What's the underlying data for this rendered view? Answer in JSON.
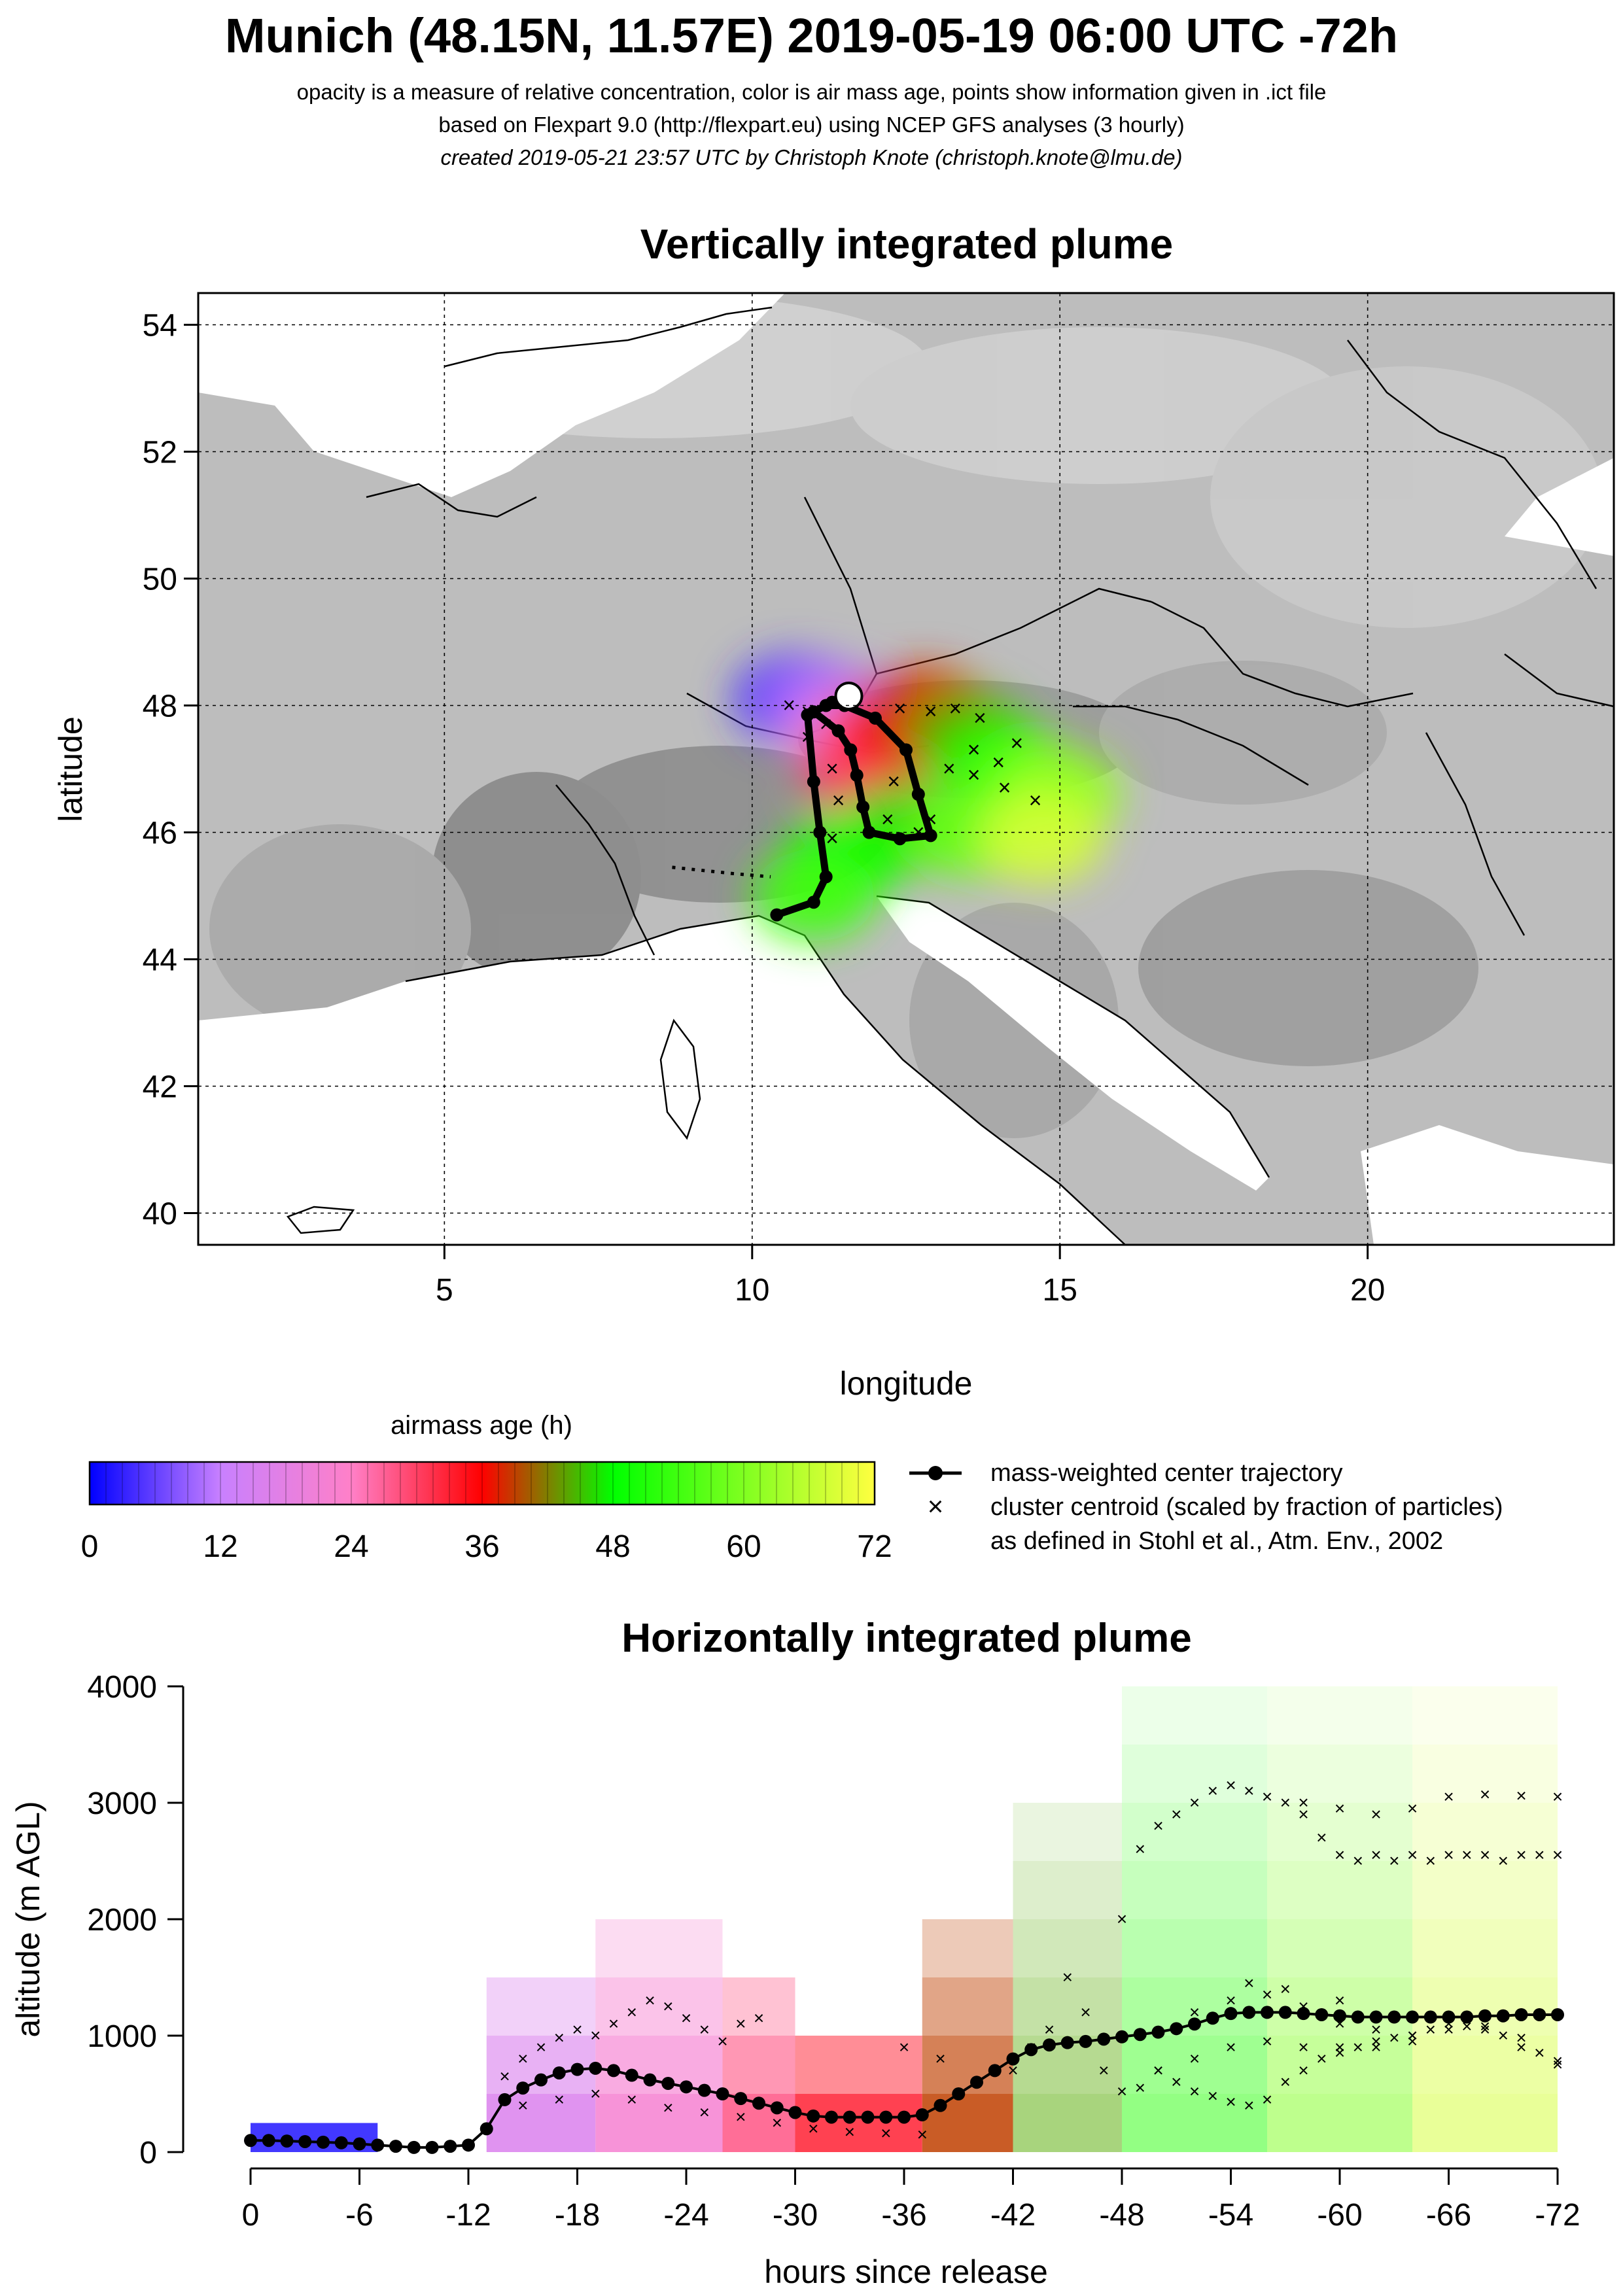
{
  "header": {
    "title": "Munich (48.15N, 11.57E) 2019-05-19 06:00 UTC -72h",
    "subtitle_1": "opacity is a measure of relative concentration, color is air mass age, points show information given in .ict file",
    "subtitle_2": "based on Flexpart 9.0 (http://flexpart.eu) using NCEP GFS analyses (3 hourly)",
    "subtitle_3": "created 2019-05-21 23:57 UTC by Christoph Knote (christoph.knote@lmu.de)"
  },
  "colorbar": {
    "label": "airmass age (h)",
    "ticks": [
      "0",
      "12",
      "24",
      "36",
      "48",
      "60",
      "72"
    ],
    "stops": [
      "#0000ff",
      "#c880ff",
      "#ff80c8",
      "#ff0000",
      "#00ff00",
      "#ffff40"
    ]
  },
  "legend": {
    "items": [
      "mass-weighted center trajectory",
      "cluster centroid (scaled by fraction of particles)",
      "as defined in Stohl et al., Atm. Env., 2002"
    ]
  },
  "chart_data": [
    {
      "type": "scatter",
      "title": "Vertically integrated plume",
      "xlabel": "longitude",
      "ylabel": "latitude",
      "xlim": [
        1,
        24
      ],
      "ylim": [
        39.5,
        54.5
      ],
      "xticks": [
        5,
        10,
        15,
        20
      ],
      "yticks": [
        40,
        42,
        44,
        46,
        48,
        50,
        52,
        54
      ],
      "grid": true,
      "release_point": {
        "lon": 11.57,
        "lat": 48.15
      },
      "series": [
        {
          "name": "mass-weighted center trajectory",
          "points": [
            [
              11.57,
              48.15
            ],
            [
              11.3,
              48.05
            ],
            [
              11.0,
              47.9
            ],
            [
              11.4,
              47.6
            ],
            [
              11.6,
              47.3
            ],
            [
              11.7,
              46.9
            ],
            [
              11.8,
              46.4
            ],
            [
              11.9,
              46.0
            ],
            [
              12.4,
              45.9
            ],
            [
              12.9,
              45.95
            ],
            [
              12.7,
              46.6
            ],
            [
              12.5,
              47.3
            ],
            [
              12.0,
              47.8
            ],
            [
              11.5,
              48.0
            ],
            [
              11.2,
              48.0
            ],
            [
              10.9,
              47.85
            ],
            [
              11.0,
              46.8
            ],
            [
              11.1,
              46.0
            ],
            [
              11.2,
              45.3
            ],
            [
              11.0,
              44.9
            ],
            [
              10.4,
              44.7
            ]
          ]
        },
        {
          "name": "cluster centroid",
          "points": [
            [
              12.4,
              47.95
            ],
            [
              12.9,
              47.9
            ],
            [
              13.3,
              47.95
            ],
            [
              13.7,
              47.8
            ],
            [
              13.6,
              47.3
            ],
            [
              13.2,
              47.0
            ],
            [
              13.6,
              46.9
            ],
            [
              14.1,
              46.7
            ],
            [
              14.6,
              46.5
            ],
            [
              14.3,
              47.4
            ],
            [
              14.0,
              47.1
            ],
            [
              12.5,
              47.3
            ],
            [
              12.3,
              46.8
            ],
            [
              12.2,
              46.2
            ],
            [
              10.6,
              48.0
            ],
            [
              10.9,
              47.9
            ],
            [
              11.2,
              47.7
            ],
            [
              10.9,
              47.5
            ],
            [
              11.3,
              47.0
            ],
            [
              11.4,
              46.5
            ],
            [
              11.3,
              45.9
            ],
            [
              12.7,
              46.0
            ],
            [
              12.9,
              46.2
            ]
          ]
        },
        {
          "name": "dotted trajectory",
          "points": [
            [
              8.7,
              45.45
            ],
            [
              9.2,
              45.4
            ],
            [
              9.7,
              45.35
            ],
            [
              10.3,
              45.3
            ]
          ]
        }
      ],
      "plume": [
        {
          "lon": 10.7,
          "lat": 48.1,
          "age": 4
        },
        {
          "lon": 11.2,
          "lat": 48.0,
          "age": 10
        },
        {
          "lon": 11.6,
          "lat": 47.6,
          "age": 20
        },
        {
          "lon": 11.8,
          "lat": 47.0,
          "age": 30
        },
        {
          "lon": 12.3,
          "lat": 47.6,
          "age": 34
        },
        {
          "lon": 12.8,
          "lat": 47.9,
          "age": 38
        },
        {
          "lon": 13.5,
          "lat": 47.5,
          "age": 44
        },
        {
          "lon": 14.0,
          "lat": 47.1,
          "age": 50
        },
        {
          "lon": 14.5,
          "lat": 46.8,
          "age": 56
        },
        {
          "lon": 15.0,
          "lat": 46.6,
          "age": 62
        },
        {
          "lon": 12.5,
          "lat": 46.1,
          "age": 46
        },
        {
          "lon": 13.5,
          "lat": 46.0,
          "age": 58
        },
        {
          "lon": 14.7,
          "lat": 45.9,
          "age": 68
        },
        {
          "lon": 11.5,
          "lat": 45.6,
          "age": 48
        },
        {
          "lon": 11.0,
          "lat": 45.0,
          "age": 54
        }
      ]
    },
    {
      "type": "scatter",
      "title": "Horizontally integrated plume",
      "xlabel": "hours since release",
      "ylabel": "altitude (m AGL)",
      "xlim": [
        0,
        -72
      ],
      "ylim": [
        0,
        4000
      ],
      "xticks": [
        "0",
        "-6",
        "-12",
        "-18",
        "-24",
        "-30",
        "-36",
        "-42",
        "-48",
        "-54",
        "-60",
        "-66",
        "-72"
      ],
      "yticks": [
        "0",
        "1000",
        "2000",
        "3000",
        "4000"
      ],
      "series": [
        {
          "name": "mass-weighted center trajectory",
          "x": [
            0,
            -1,
            -2,
            -3,
            -4,
            -5,
            -6,
            -7,
            -8,
            -9,
            -10,
            -11,
            -12,
            -13,
            -14,
            -15,
            -16,
            -17,
            -18,
            -19,
            -20,
            -21,
            -22,
            -23,
            -24,
            -25,
            -26,
            -27,
            -28,
            -29,
            -30,
            -31,
            -32,
            -33,
            -34,
            -35,
            -36,
            -37,
            -38,
            -39,
            -40,
            -41,
            -42,
            -43,
            -44,
            -45,
            -46,
            -47,
            -48,
            -49,
            -50,
            -51,
            -52,
            -53,
            -54,
            -55,
            -56,
            -57,
            -58,
            -59,
            -60,
            -61,
            -62,
            -63,
            -64,
            -65,
            -66,
            -67,
            -68,
            -69,
            -70,
            -71,
            -72
          ],
          "y": [
            100,
            100,
            95,
            90,
            85,
            80,
            70,
            60,
            50,
            40,
            40,
            50,
            60,
            200,
            450,
            550,
            620,
            680,
            710,
            720,
            700,
            660,
            620,
            590,
            560,
            530,
            500,
            460,
            420,
            380,
            340,
            310,
            300,
            300,
            300,
            300,
            300,
            320,
            400,
            500,
            600,
            700,
            800,
            880,
            920,
            940,
            950,
            970,
            990,
            1010,
            1030,
            1060,
            1100,
            1150,
            1190,
            1200,
            1200,
            1200,
            1190,
            1180,
            1170,
            1160,
            1160,
            1160,
            1160,
            1160,
            1160,
            1160,
            1170,
            1170,
            1180,
            1180,
            1180
          ]
        },
        {
          "name": "cluster centroid",
          "points": [
            [
              -14,
              650
            ],
            [
              -15,
              800
            ],
            [
              -16,
              900
            ],
            [
              -17,
              980
            ],
            [
              -18,
              1050
            ],
            [
              -19,
              1000
            ],
            [
              -20,
              1100
            ],
            [
              -21,
              1200
            ],
            [
              -22,
              1300
            ],
            [
              -23,
              1250
            ],
            [
              -24,
              1150
            ],
            [
              -25,
              1050
            ],
            [
              -26,
              950
            ],
            [
              -27,
              1100
            ],
            [
              -28,
              1150
            ],
            [
              -15,
              400
            ],
            [
              -17,
              450
            ],
            [
              -19,
              500
            ],
            [
              -21,
              450
            ],
            [
              -23,
              380
            ],
            [
              -25,
              340
            ],
            [
              -27,
              300
            ],
            [
              -29,
              250
            ],
            [
              -31,
              200
            ],
            [
              -33,
              170
            ],
            [
              -35,
              160
            ],
            [
              -37,
              150
            ],
            [
              -36,
              900
            ],
            [
              -38,
              800
            ],
            [
              -40,
              600
            ],
            [
              -42,
              700
            ],
            [
              -43,
              900
            ],
            [
              -44,
              1050
            ],
            [
              -45,
              1500
            ],
            [
              -46,
              1200
            ],
            [
              -47,
              700
            ],
            [
              -48,
              520
            ],
            [
              -49,
              550
            ],
            [
              -50,
              700
            ],
            [
              -51,
              600
            ],
            [
              -52,
              520
            ],
            [
              -53,
              480
            ],
            [
              -54,
              430
            ],
            [
              -55,
              400
            ],
            [
              -56,
              450
            ],
            [
              -57,
              600
            ],
            [
              -58,
              700
            ],
            [
              -59,
              800
            ],
            [
              -60,
              900
            ],
            [
              -61,
              900
            ],
            [
              -62,
              950
            ],
            [
              -63,
              980
            ],
            [
              -64,
              1000
            ],
            [
              -65,
              1050
            ],
            [
              -66,
              1050
            ],
            [
              -67,
              1080
            ],
            [
              -68,
              1080
            ],
            [
              -69,
              1000
            ],
            [
              -70,
              900
            ],
            [
              -71,
              850
            ],
            [
              -72,
              780
            ],
            [
              -48,
              2000
            ],
            [
              -49,
              2600
            ],
            [
              -50,
              2800
            ],
            [
              -51,
              2900
            ],
            [
              -52,
              3000
            ],
            [
              -53,
              3100
            ],
            [
              -54,
              3150
            ],
            [
              -55,
              3100
            ],
            [
              -56,
              3050
            ],
            [
              -57,
              3000
            ],
            [
              -58,
              2900
            ],
            [
              -59,
              2700
            ],
            [
              -60,
              2550
            ],
            [
              -61,
              2500
            ],
            [
              -62,
              2550
            ],
            [
              -63,
              2500
            ],
            [
              -64,
              2550
            ],
            [
              -65,
              2500
            ],
            [
              -66,
              2550
            ],
            [
              -67,
              2550
            ],
            [
              -68,
              2550
            ],
            [
              -69,
              2500
            ],
            [
              -70,
              2550
            ],
            [
              -71,
              2550
            ],
            [
              -72,
              2550
            ],
            [
              -58,
              3000
            ],
            [
              -60,
              2950
            ],
            [
              -62,
              2900
            ],
            [
              -64,
              2950
            ],
            [
              -66,
              3050
            ],
            [
              -68,
              3070
            ],
            [
              -70,
              3060
            ],
            [
              -72,
              3050
            ],
            [
              -50,
              700
            ],
            [
              -52,
              1200
            ],
            [
              -54,
              1300
            ],
            [
              -56,
              1350
            ],
            [
              -58,
              1250
            ],
            [
              -60,
              1100
            ],
            [
              -62,
              1050
            ],
            [
              -64,
              1000
            ],
            [
              -55,
              1450
            ],
            [
              -57,
              1400
            ],
            [
              -60,
              1300
            ],
            [
              -52,
              800
            ],
            [
              -54,
              900
            ],
            [
              -56,
              950
            ],
            [
              -58,
              900
            ],
            [
              -60,
              850
            ],
            [
              -62,
              900
            ],
            [
              -64,
              950
            ],
            [
              -66,
              1100
            ],
            [
              -68,
              1050
            ],
            [
              -70,
              980
            ],
            [
              -72,
              750
            ]
          ]
        }
      ],
      "plume_cells": [
        {
          "x0": 0,
          "x1": -7,
          "y0": 0,
          "y1": 250,
          "age": 2
        },
        {
          "x0": -13,
          "x1": -19,
          "y0": 0,
          "y1": 1500,
          "age": 16
        },
        {
          "x0": -19,
          "x1": -26,
          "y0": 0,
          "y1": 2000,
          "age": 22
        },
        {
          "x0": -26,
          "x1": -30,
          "y0": 0,
          "y1": 1500,
          "age": 28
        },
        {
          "x0": -30,
          "x1": -37,
          "y0": 0,
          "y1": 1000,
          "age": 33
        },
        {
          "x0": -37,
          "x1": -42,
          "y0": 0,
          "y1": 2000,
          "age": 39
        },
        {
          "x0": -42,
          "x1": -48,
          "y0": 0,
          "y1": 3000,
          "age": 44
        },
        {
          "x0": -48,
          "x1": -56,
          "y0": 0,
          "y1": 4000,
          "age": 52
        },
        {
          "x0": -56,
          "x1": -64,
          "y0": 0,
          "y1": 4000,
          "age": 60
        },
        {
          "x0": -64,
          "x1": -72,
          "y0": 0,
          "y1": 4000,
          "age": 68
        }
      ]
    }
  ]
}
